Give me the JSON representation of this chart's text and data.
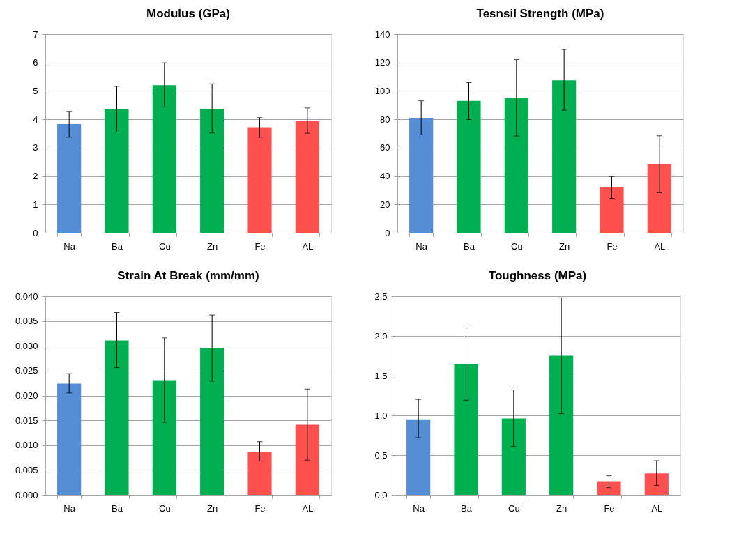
{
  "chart_data": [
    {
      "type": "bar",
      "title": "Modulus (GPa)",
      "categories": [
        "Na",
        "Ba",
        "Cu",
        "Zn",
        "Fe",
        "AL"
      ],
      "values": [
        3.83,
        4.35,
        5.2,
        4.37,
        3.72,
        3.93
      ],
      "colors": [
        "#558ed5",
        "#00b050",
        "#00b050",
        "#00b050",
        "#ff5050",
        "#ff5050"
      ],
      "errors": [
        [
          3.37,
          4.28
        ],
        [
          3.55,
          5.16
        ],
        [
          4.43,
          5.99
        ],
        [
          3.52,
          5.25
        ],
        [
          3.37,
          4.06
        ],
        [
          3.51,
          4.4
        ]
      ],
      "ylim": [
        0,
        7
      ],
      "yticks": [
        0,
        1,
        2,
        3,
        4,
        5,
        6,
        7
      ],
      "grid": "y"
    },
    {
      "type": "bar",
      "title": "Tesnsil Strength (MPa)",
      "categories": [
        "Na",
        "Ba",
        "Cu",
        "Zn",
        "Fe",
        "AL"
      ],
      "values": [
        81.1,
        93.0,
        94.9,
        107.5,
        32.3,
        48.4
      ],
      "colors": [
        "#558ed5",
        "#00b050",
        "#00b050",
        "#00b050",
        "#ff5050",
        "#ff5050"
      ],
      "errors": [
        [
          69.0,
          93.0
        ],
        [
          79.8,
          105.9
        ],
        [
          68.2,
          122.0
        ],
        [
          86.4,
          129.2
        ],
        [
          24.3,
          39.7
        ],
        [
          28.2,
          68.4
        ]
      ],
      "ylim": [
        0,
        140
      ],
      "yticks": [
        0,
        20,
        40,
        60,
        80,
        100,
        120,
        140
      ],
      "grid": "y"
    },
    {
      "type": "bar",
      "title": "Strain At Break (mm/mm)",
      "categories": [
        "Na",
        "Ba",
        "Cu",
        "Zn",
        "Fe",
        "AL"
      ],
      "values": [
        0.0224,
        0.0311,
        0.0231,
        0.0296,
        0.0087,
        0.0141
      ],
      "colors": [
        "#558ed5",
        "#00b050",
        "#00b050",
        "#00b050",
        "#ff5050",
        "#ff5050"
      ],
      "errors": [
        [
          0.0205,
          0.0244
        ],
        [
          0.0256,
          0.0367
        ],
        [
          0.0146,
          0.0316
        ],
        [
          0.0229,
          0.0362
        ],
        [
          0.0068,
          0.0107
        ],
        [
          0.007,
          0.0213
        ]
      ],
      "ylim": [
        0,
        0.04
      ],
      "yticks": [
        {
          "value": 0,
          "label": "0.000"
        },
        {
          "value": 0.005,
          "label": "0.005"
        },
        {
          "value": 0.01,
          "label": "0.010"
        },
        {
          "value": 0.015,
          "label": "0.015"
        },
        {
          "value": 0.02,
          "label": "0.020"
        },
        {
          "value": 0.025,
          "label": "0.025"
        },
        {
          "value": 0.03,
          "label": "0.030"
        },
        {
          "value": 0.035,
          "label": "0.035"
        },
        {
          "value": 0.04,
          "label": "0.040"
        }
      ],
      "grid": "y"
    },
    {
      "type": "bar",
      "title": "Toughness (MPa)",
      "categories": [
        "Na",
        "Ba",
        "Cu",
        "Zn",
        "Fe",
        "AL"
      ],
      "values": [
        0.95,
        1.64,
        0.96,
        1.75,
        0.17,
        0.27
      ],
      "colors": [
        "#558ed5",
        "#00b050",
        "#00b050",
        "#00b050",
        "#ff5050",
        "#ff5050"
      ],
      "errors": [
        [
          0.72,
          1.2
        ],
        [
          1.19,
          2.1
        ],
        [
          0.61,
          1.32
        ],
        [
          1.02,
          2.48
        ],
        [
          0.09,
          0.24
        ],
        [
          0.12,
          0.43
        ]
      ],
      "ylim": [
        0,
        2.5
      ],
      "yticks": [
        {
          "value": 0,
          "label": "0.0"
        },
        {
          "value": 0.5,
          "label": "0.5"
        },
        {
          "value": 1,
          "label": "1.0"
        },
        {
          "value": 1.5,
          "label": "1.5"
        },
        {
          "value": 2,
          "label": "2.0"
        },
        {
          "value": 2.5,
          "label": "2.5"
        }
      ],
      "grid": "y"
    }
  ]
}
